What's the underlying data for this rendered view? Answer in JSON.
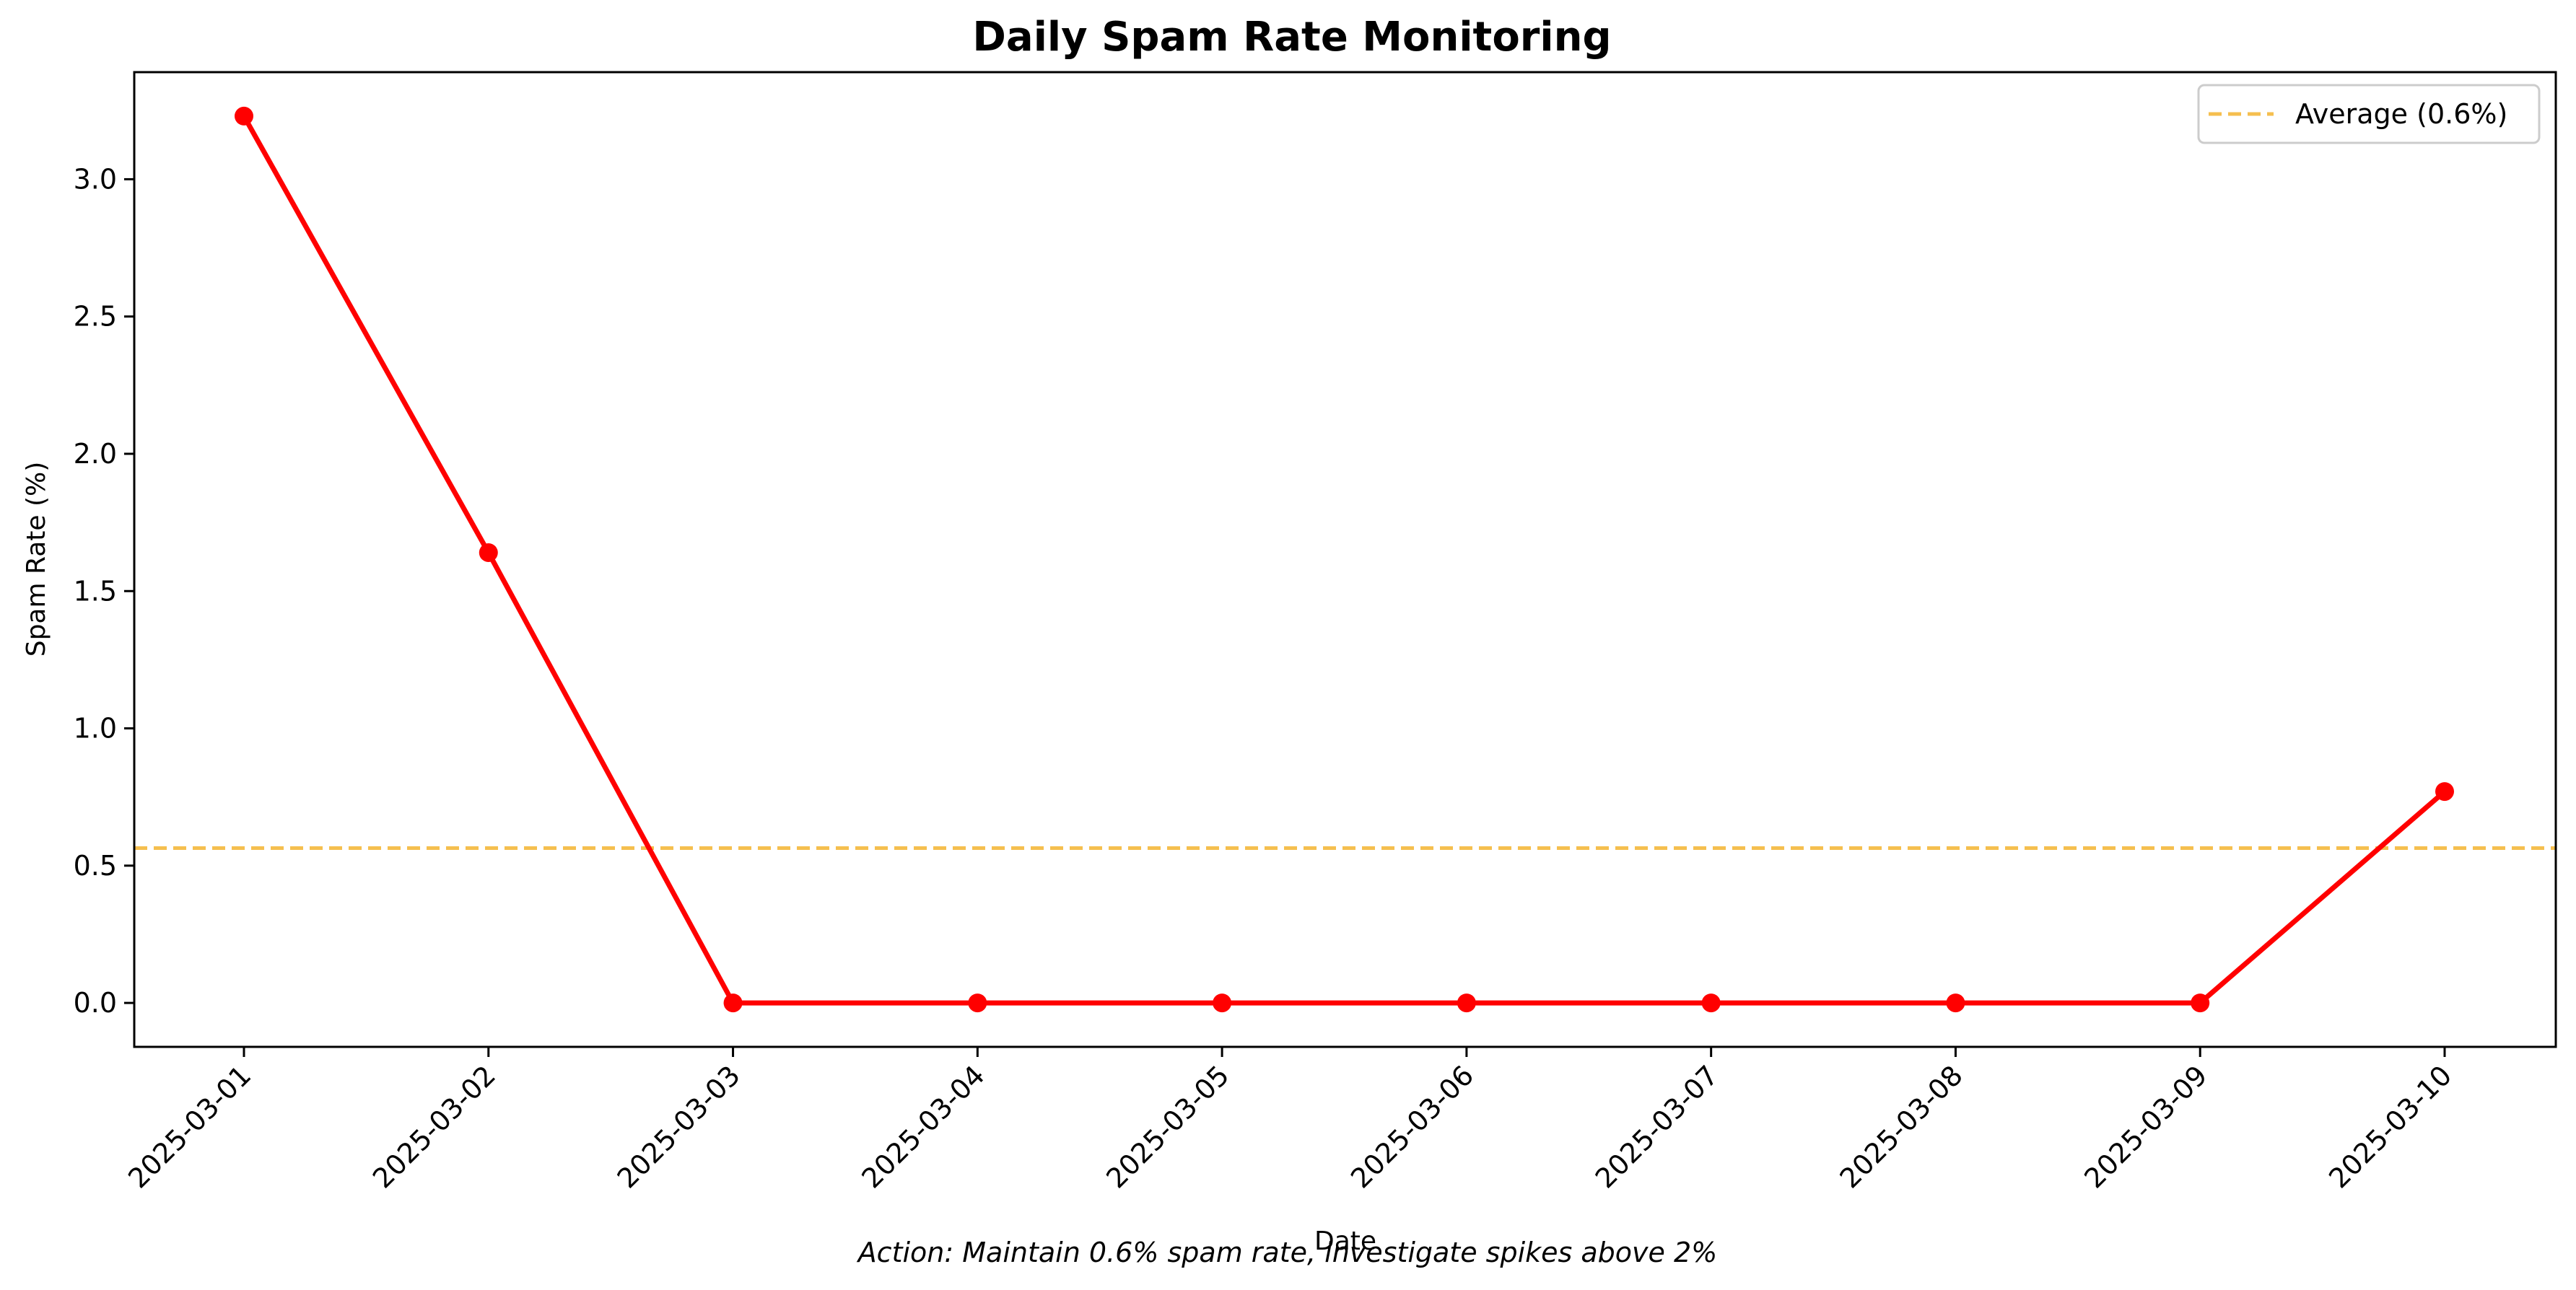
{
  "chart_data": {
    "type": "line",
    "title": "Daily Spam Rate Monitoring",
    "xlabel": "Date",
    "ylabel": "Spam Rate (%)",
    "categories": [
      "2025-03-01",
      "2025-03-02",
      "2025-03-03",
      "2025-03-04",
      "2025-03-05",
      "2025-03-06",
      "2025-03-07",
      "2025-03-08",
      "2025-03-09",
      "2025-03-10"
    ],
    "series": [
      {
        "values": [
          3.23,
          1.64,
          0.0,
          0.0,
          0.0,
          0.0,
          0.0,
          0.0,
          0.0,
          0.77
        ],
        "color": "#ff0000",
        "marker": "circle"
      }
    ],
    "reference_line": {
      "value": 0.564,
      "label": "Average (0.6%)",
      "color": "#f5bf4f",
      "style": "dashed"
    },
    "ylim": [
      -0.16,
      3.39
    ],
    "yticks": [
      "0.0",
      "0.5",
      "1.0",
      "1.5",
      "2.0",
      "2.5",
      "3.0"
    ],
    "grid": false,
    "legend_position": "top-right",
    "annotation": "Action: Maintain 0.6% spam rate, investigate spikes above 2%"
  }
}
